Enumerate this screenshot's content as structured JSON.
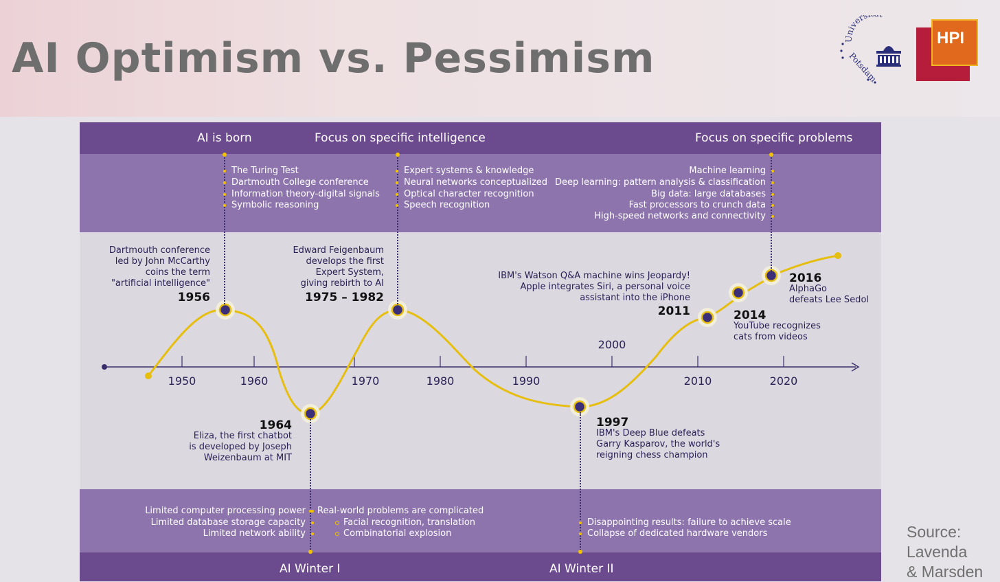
{
  "slide": {
    "title": "AI Optimism vs. Pessimism",
    "source_lines": [
      "Source:",
      "Lavenda",
      "& Marsden"
    ]
  },
  "logos": {
    "university_text": "Universität Potsdam",
    "hpi_text": "HPI"
  },
  "top_headers": [
    "AI is born",
    "Focus on specific intelligence",
    "Focus on specific problems"
  ],
  "top_lists": {
    "ai_born": [
      "The Turing Test",
      "Dartmouth College conference",
      "Information theory-digital signals",
      "Symbolic reasoning"
    ],
    "specific_intelligence": [
      "Expert systems & knowledge",
      "Neural networks conceptualized",
      "Optical character recognition",
      "Speech recognition"
    ],
    "specific_problems": [
      "Machine learning",
      "Deep learning: pattern analysis & classification",
      "Big data: large databases",
      "Fast processors to crunch data",
      "High-speed networks and connectivity"
    ]
  },
  "timeline": {
    "axis_ticks": [
      "1950",
      "1960",
      "1970",
      "1980",
      "1990",
      "2000",
      "2010",
      "2020"
    ],
    "milestones": {
      "m1956": {
        "year": "1956",
        "lines": [
          "Dartmouth conference",
          "led by John McCarthy",
          "coins the term",
          "\"artificial intelligence\""
        ]
      },
      "m1964": {
        "year": "1964",
        "lines": [
          "Eliza, the first chatbot",
          "is developed by Joseph",
          "Weizenbaum at MIT"
        ]
      },
      "m1975": {
        "year": "1975 – 1982",
        "lines": [
          "Edward Feigenbaum",
          "develops the first",
          "Expert System,",
          "giving rebirth to AI"
        ]
      },
      "m1997": {
        "year": "1997",
        "lines": [
          "IBM's Deep Blue defeats",
          "Garry Kasparov, the world's",
          "reigning chess champion"
        ]
      },
      "m2011": {
        "year": "2011",
        "lines": [
          "IBM's Watson Q&A machine wins Jeopardy!",
          "Apple integrates Siri, a personal voice",
          "assistant into the iPhone"
        ]
      },
      "m2014": {
        "year": "2014",
        "lines": [
          "YouTube recognizes",
          "cats from videos"
        ]
      },
      "m2016": {
        "year": "2016",
        "lines": [
          "AlphaGo",
          "defeats Lee Sedol"
        ]
      }
    }
  },
  "bottom_lists": {
    "winter1_left": [
      "Limited computer processing power",
      "Limited database storage capacity",
      "Limited network ability"
    ],
    "winter1_right": [
      "Real-world problems are complicated"
    ],
    "winter1_sub": [
      "Facial recognition, translation",
      "Combinatorial explosion"
    ],
    "winter2": [
      "Disappointing results: failure to achieve scale",
      "Collapse of dedicated hardware vendors"
    ]
  },
  "bottom_headers": [
    "AI Winter I",
    "AI Winter II"
  ],
  "colors": {
    "band_dark": "#6c4a8e",
    "band_light": "#8d74ad",
    "curve": "#e6be10",
    "dot": "#3b2f7a"
  }
}
